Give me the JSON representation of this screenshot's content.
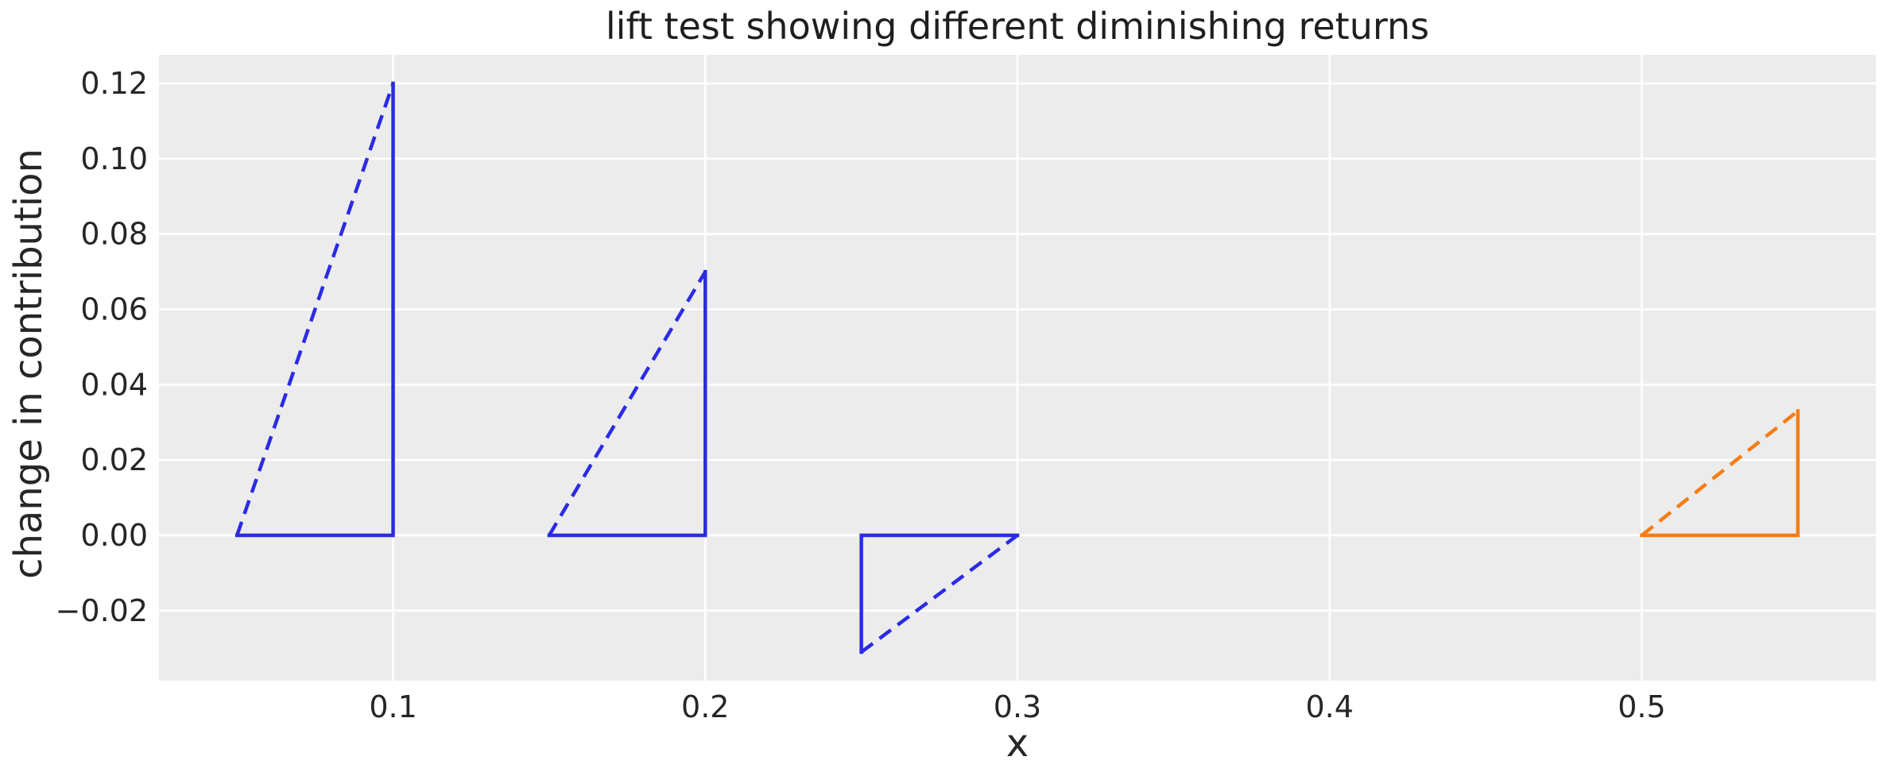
{
  "figure": {
    "background": "#ffffff",
    "text_color": "#262626"
  },
  "chart_data": {
    "type": "line",
    "title": "lift test showing different diminishing returns",
    "xlabel": "x",
    "ylabel": "change in contribution",
    "plot_background": "#ececec",
    "grid": true,
    "grid_color": "#ffffff",
    "legend": "none",
    "xlim": [
      0.025,
      0.575
    ],
    "ylim": [
      -0.0386,
      0.1276
    ],
    "x_ticks": [
      0.1,
      0.2,
      0.3,
      0.4,
      0.5
    ],
    "x_tick_labels": [
      "0.1",
      "0.2",
      "0.3",
      "0.4",
      "0.5"
    ],
    "y_ticks": [
      0.12,
      0.1,
      0.08,
      0.06,
      0.04,
      0.02,
      0.0,
      -0.02
    ],
    "y_tick_labels": [
      "0.12",
      "0.10",
      "0.08",
      "0.06",
      "0.04",
      "0.02",
      "0.00",
      "−0.02"
    ],
    "series": [
      {
        "name": "lift-triangle-1",
        "color": "#2b2be4",
        "x_range": [
          0.05,
          0.1
        ],
        "delta_y": 0.12,
        "solid_points": [
          [
            0.05,
            0.0
          ],
          [
            0.1,
            0.0
          ],
          [
            0.1,
            0.12
          ]
        ],
        "dashed_points": [
          [
            0.05,
            0.0
          ],
          [
            0.1,
            0.12
          ]
        ]
      },
      {
        "name": "lift-triangle-2",
        "color": "#2b2be4",
        "x_range": [
          0.15,
          0.2
        ],
        "delta_y": 0.07,
        "solid_points": [
          [
            0.15,
            0.0
          ],
          [
            0.2,
            0.0
          ],
          [
            0.2,
            0.07
          ]
        ],
        "dashed_points": [
          [
            0.15,
            0.0
          ],
          [
            0.2,
            0.07
          ]
        ]
      },
      {
        "name": "lift-triangle-3",
        "color": "#2b2be4",
        "x_range": [
          0.25,
          0.3
        ],
        "delta_y": -0.031,
        "solid_points": [
          [
            0.25,
            -0.031
          ],
          [
            0.25,
            0.0
          ],
          [
            0.3,
            0.0
          ]
        ],
        "dashed_points": [
          [
            0.25,
            -0.031
          ],
          [
            0.3,
            0.0
          ]
        ]
      },
      {
        "name": "lift-triangle-4",
        "color": "#f57d14",
        "x_range": [
          0.5,
          0.55
        ],
        "delta_y": 0.033,
        "solid_points": [
          [
            0.5,
            0.0
          ],
          [
            0.55,
            0.0
          ],
          [
            0.55,
            0.033
          ]
        ],
        "dashed_points": [
          [
            0.5,
            0.0
          ],
          [
            0.55,
            0.033
          ]
        ]
      }
    ]
  }
}
